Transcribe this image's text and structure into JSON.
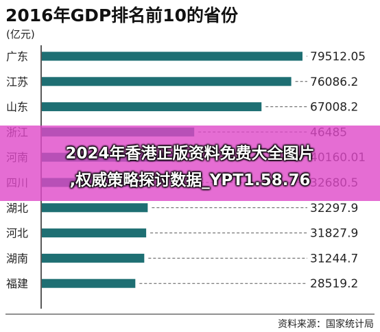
{
  "overlay": {
    "line1": "2024年香港正版资料免费大全图片",
    "line2": ",权威策略探讨数据_YPT1.58.76"
  },
  "chart_data": {
    "type": "bar",
    "orientation": "horizontal",
    "title": "2016年GDP排名前10的省份",
    "unit": "(亿元)",
    "source": "资料来源：国家统计局",
    "categories": [
      "广东",
      "江苏",
      "山东",
      "浙江",
      "河南",
      "四川",
      "湖北",
      "河北",
      "湖南",
      "福建"
    ],
    "values": [
      79512.05,
      76086.2,
      67008.2,
      46485,
      40160.01,
      32680.5,
      32297.9,
      31827.9,
      31244.7,
      28519.2
    ],
    "value_labels": [
      "79512.05",
      "76086.2",
      "67008.2",
      "46485",
      "40160.01",
      "32680.5",
      "32297.9",
      "31827.9",
      "31244.7",
      "28519.2"
    ],
    "xlim": [
      0,
      79512.05
    ],
    "colors": {
      "bar": "#1e6f73",
      "axis": "#222222",
      "leader": "#555555"
    }
  }
}
